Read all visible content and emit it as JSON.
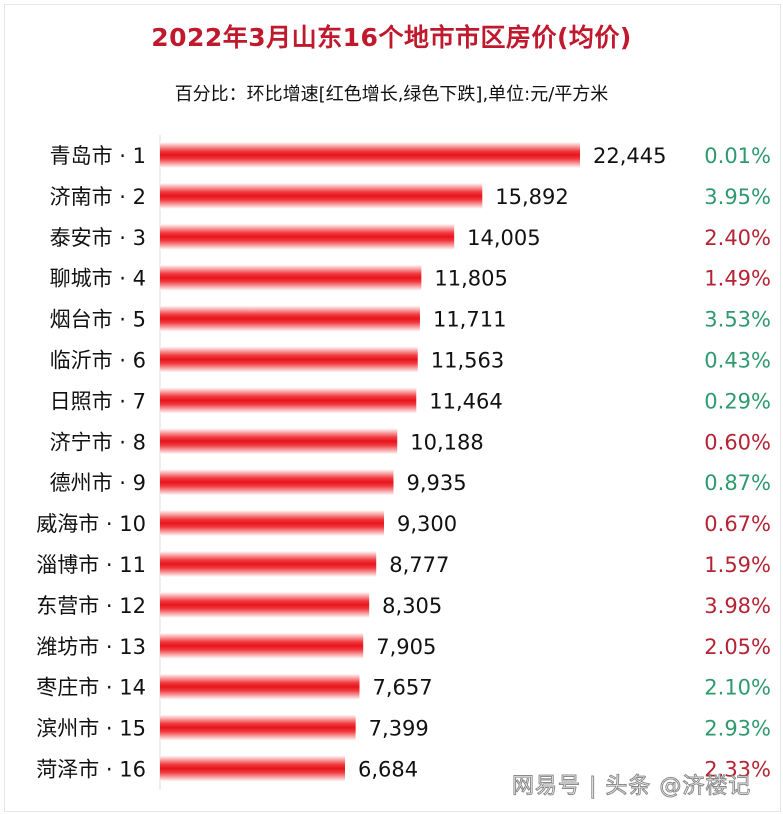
{
  "chart_data": {
    "type": "bar",
    "orientation": "horizontal",
    "title": "2022年3月山东16个地市市区房价(均价)",
    "subtitle": "百分比：环比增速[红色增长,绿色下跌],单位:元/平方米",
    "categories": [
      "青岛市 · 1",
      "济南市 · 2",
      "泰安市 · 3",
      "聊城市 · 4",
      "烟台市 · 5",
      "临沂市 · 6",
      "日照市 · 7",
      "济宁市 · 8",
      "德州市 · 9",
      "威海市 · 10",
      "淄博市 · 11",
      "东营市 · 12",
      "潍坊市 · 13",
      "枣庄市 · 14",
      "滨州市 · 15",
      "菏泽市 · 16"
    ],
    "values": [
      22445,
      15892,
      14005,
      11805,
      11711,
      11563,
      11464,
      10188,
      9935,
      9300,
      8777,
      8305,
      7905,
      7657,
      7399,
      6684
    ],
    "value_labels": [
      "22,445",
      "15,892",
      "14,005",
      "11,805",
      "11,711",
      "11,563",
      "11,464",
      "10,188",
      "9,935",
      "9,300",
      "8,777",
      "8,305",
      "7,905",
      "7,657",
      "7,399",
      "6,684"
    ],
    "change_labels": [
      "0.01%",
      "3.95%",
      "2.40%",
      "1.49%",
      "3.53%",
      "0.43%",
      "0.29%",
      "0.60%",
      "0.87%",
      "0.67%",
      "1.59%",
      "3.98%",
      "2.05%",
      "2.10%",
      "2.93%",
      "2.33%"
    ],
    "change_direction": [
      "down",
      "down",
      "up",
      "up",
      "down",
      "down",
      "down",
      "up",
      "down",
      "up",
      "up",
      "up",
      "up",
      "down",
      "down",
      "up"
    ],
    "colors": {
      "bar": "#e8141c",
      "up": "#b52334",
      "down": "#2e9a6e",
      "title": "#c0182c"
    },
    "grid": false,
    "legend": "none"
  },
  "watermark": "网易号 | 头条 @济楼记"
}
